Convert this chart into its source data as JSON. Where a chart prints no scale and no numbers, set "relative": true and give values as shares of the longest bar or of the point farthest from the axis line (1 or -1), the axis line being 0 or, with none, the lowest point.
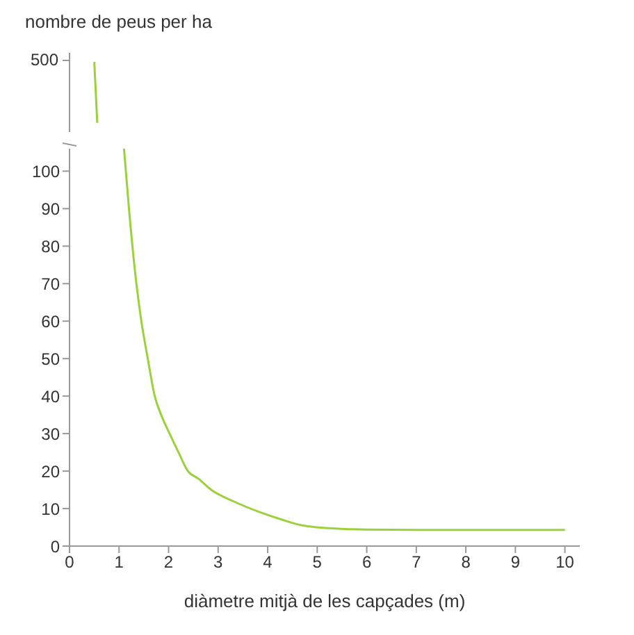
{
  "chart_data": [
    {
      "type": "line",
      "ylabel": "nombre de peus per ha",
      "annotations": [
        "500"
      ],
      "relative": true,
      "x": [
        0.5,
        0.56
      ],
      "values": [
        1,
        0
      ],
      "color": "#9bd23c",
      "xlim": [
        0,
        10
      ],
      "xticks": [
        0,
        1,
        2,
        3,
        4,
        5,
        6,
        7,
        8,
        9,
        10
      ],
      "tick_labels": false,
      "grid": false,
      "legend": false,
      "marker": "none"
    },
    {
      "type": "line",
      "xlabel": "diàmetre mitjà de les capçades (m)",
      "x": [
        1.1,
        1.2,
        1.35,
        1.45,
        1.58,
        1.72,
        1.85,
        2.02,
        2.2,
        2.39,
        2.6,
        2.86,
        3.3,
        3.85,
        4.3,
        4.7,
        5.0,
        5.5,
        6.0,
        7.0,
        8.0,
        9.0,
        10.0
      ],
      "values": [
        106,
        90,
        70,
        60,
        50,
        40,
        35,
        30,
        25,
        20,
        18,
        15,
        12,
        9,
        7,
        5.5,
        5,
        4.6,
        4.4,
        4.3,
        4.3,
        4.3,
        4.3
      ],
      "color": "#9bd23c",
      "xlim": [
        0,
        10.3
      ],
      "xticks": [
        0,
        1,
        2,
        3,
        4,
        5,
        6,
        7,
        8,
        9,
        10
      ],
      "ylim": [
        0,
        106
      ],
      "yticks": [
        0,
        10,
        20,
        30,
        40,
        50,
        60,
        70,
        80,
        90,
        100
      ],
      "grid": false,
      "legend": false,
      "marker": "none"
    }
  ]
}
